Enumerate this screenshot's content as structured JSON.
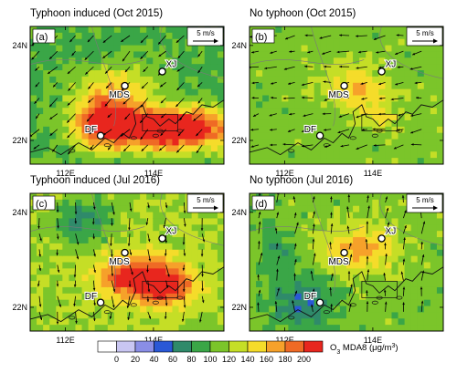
{
  "panels": [
    {
      "id": "a",
      "title": "Typhoon induced (Oct 2015)",
      "label": "(a)",
      "wind_scale": "5 m/s",
      "wind_dir": "from-northeast",
      "hotspots": [
        {
          "lon": 114.3,
          "lat": 22.25,
          "sx": 1.6,
          "sy": 0.45,
          "amp": 150
        },
        {
          "lon": 112.8,
          "lat": 22.4,
          "sx": 0.6,
          "sy": 0.55,
          "amp": 80
        },
        {
          "lon": 113.2,
          "lat": 23.1,
          "sx": 0.9,
          "sy": 0.5,
          "amp": 55
        }
      ],
      "base": 95
    },
    {
      "id": "b",
      "title": "No typhoon (Oct 2015)",
      "label": "(b)",
      "wind_scale": "5 m/s",
      "wind_dir": "from-east",
      "hotspots": [
        {
          "lon": 113.6,
          "lat": 23.1,
          "sx": 0.7,
          "sy": 0.45,
          "amp": 50
        },
        {
          "lon": 114.2,
          "lat": 22.5,
          "sx": 0.6,
          "sy": 0.3,
          "amp": 25
        }
      ],
      "base": 110
    },
    {
      "id": "c",
      "title": "Typhoon induced (Jul 2016)",
      "label": "(c)",
      "wind_scale": "5 m/s",
      "wind_dir": "from-north",
      "hotspots": [
        {
          "lon": 113.6,
          "lat": 22.65,
          "sx": 0.9,
          "sy": 0.45,
          "amp": 95
        },
        {
          "lon": 114.3,
          "lat": 22.4,
          "sx": 0.7,
          "sy": 0.4,
          "amp": 70
        },
        {
          "lon": 112.4,
          "lat": 23.8,
          "sx": 0.6,
          "sy": 0.5,
          "amp": -50
        }
      ],
      "base": 120
    },
    {
      "id": "d",
      "title": "No typhoon (Jul 2016)",
      "label": "(d)",
      "wind_scale": "5 m/s",
      "wind_dir": "from-south",
      "hotspots": [
        {
          "lon": 113.7,
          "lat": 23.2,
          "sx": 0.8,
          "sy": 0.5,
          "amp": 60
        },
        {
          "lon": 112.4,
          "lat": 22.1,
          "sx": 0.7,
          "sy": 0.55,
          "amp": -50
        },
        {
          "lon": 111.8,
          "lat": 23.2,
          "sx": 0.4,
          "sy": 0.5,
          "amp": -30
        }
      ],
      "base": 110
    }
  ],
  "sites": [
    {
      "name": "XJ",
      "lon": 114.2,
      "lat": 23.45
    },
    {
      "name": "MDS",
      "lon": 113.35,
      "lat": 23.15
    },
    {
      "name": "DF",
      "lon": 112.8,
      "lat": 22.1
    }
  ],
  "axes": {
    "x_ticks": [
      {
        "value": 112,
        "label": "112E"
      },
      {
        "value": 114,
        "label": "114E"
      }
    ],
    "y_ticks": [
      {
        "value": 22,
        "label": "22N"
      },
      {
        "value": 24,
        "label": "24N"
      }
    ],
    "lon_range": [
      111.2,
      115.6
    ],
    "lat_range": [
      21.5,
      24.4
    ]
  },
  "colorbar": {
    "ticks": [
      "0",
      "20",
      "40",
      "60",
      "80",
      "100",
      "120",
      "140",
      "160",
      "180",
      "200"
    ],
    "title": "O",
    "title_sub": "3",
    "title_rest": " MDA8 (μg/m",
    "title_sup": "3",
    "title_end": ")",
    "colors": [
      "#ffffff",
      "#c9c6f2",
      "#8a8ee6",
      "#2a58d6",
      "#2f8a6a",
      "#3aa647",
      "#7bc52a",
      "#c5de26",
      "#f5dc2a",
      "#f6a12a",
      "#ef6a25",
      "#e8261e"
    ]
  }
}
